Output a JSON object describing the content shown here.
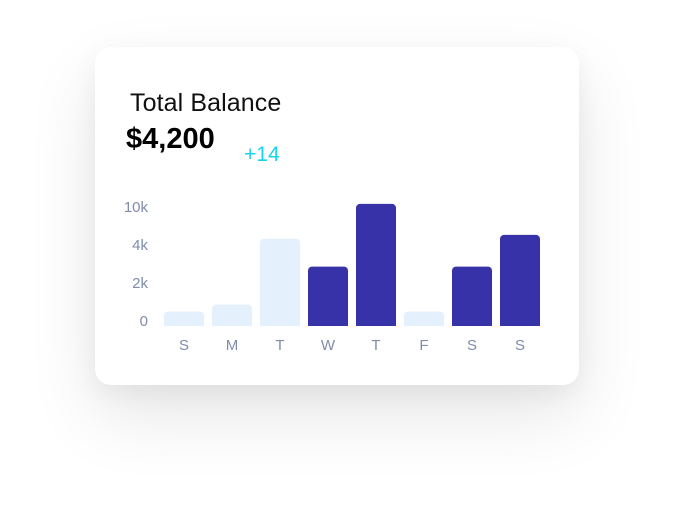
{
  "card": {
    "title": "Total Balance",
    "amount": "$4,200",
    "change": "+14"
  },
  "colors": {
    "accent": "#3832a9",
    "muted_bar": "#e5f0fd",
    "change": "#17d4e8",
    "axis_text": "#7f8cad"
  },
  "chart_data": {
    "type": "bar",
    "categories": [
      "S",
      "M",
      "T",
      "W",
      "T",
      "F",
      "S",
      "S"
    ],
    "values": [
      0.6,
      0.9,
      4.2,
      2.6,
      9.7,
      0.6,
      2.6,
      4.8
    ],
    "highlighted": [
      false,
      false,
      false,
      true,
      true,
      false,
      true,
      true
    ],
    "y_ticks": [
      "0",
      "2k",
      "4k",
      "10k"
    ],
    "ylim": [
      0,
      10
    ],
    "title": "",
    "xlabel": "",
    "ylabel": "",
    "grid": false,
    "legend": "none"
  }
}
